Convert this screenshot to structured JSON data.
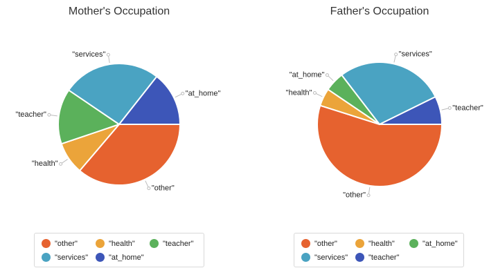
{
  "chart_data": [
    {
      "type": "pie",
      "title": "Mother's Occupation",
      "slices": [
        {
          "label": "\"other\"",
          "value": 36.2,
          "color": "#e6622f"
        },
        {
          "label": "\"health\"",
          "value": 8.6,
          "color": "#eba43a"
        },
        {
          "label": "\"teacher\"",
          "value": 14.7,
          "color": "#5bb15b"
        },
        {
          "label": "\"services\"",
          "value": 26.1,
          "color": "#4aa3c2"
        },
        {
          "label": "\"at_home\"",
          "value": 14.4,
          "color": "#3d56b8"
        }
      ],
      "legend": {
        "position": "bottom",
        "items": [
          "\"other\"",
          "\"health\"",
          "\"teacher\"",
          "\"services\"",
          "\"at_home\""
        ]
      }
    },
    {
      "type": "pie",
      "title": "Father's Occupation",
      "slices": [
        {
          "label": "\"other\"",
          "value": 54.9,
          "color": "#e6622f"
        },
        {
          "label": "\"health\"",
          "value": 4.6,
          "color": "#eba43a"
        },
        {
          "label": "\"at_home\"",
          "value": 5.1,
          "color": "#5bb15b"
        },
        {
          "label": "\"services\"",
          "value": 28.1,
          "color": "#4aa3c2"
        },
        {
          "label": "\"teacher\"",
          "value": 7.3,
          "color": "#3d56b8"
        }
      ],
      "legend": {
        "position": "bottom",
        "items": [
          "\"other\"",
          "\"health\"",
          "\"at_home\"",
          "\"services\"",
          "\"teacher\""
        ]
      }
    }
  ]
}
